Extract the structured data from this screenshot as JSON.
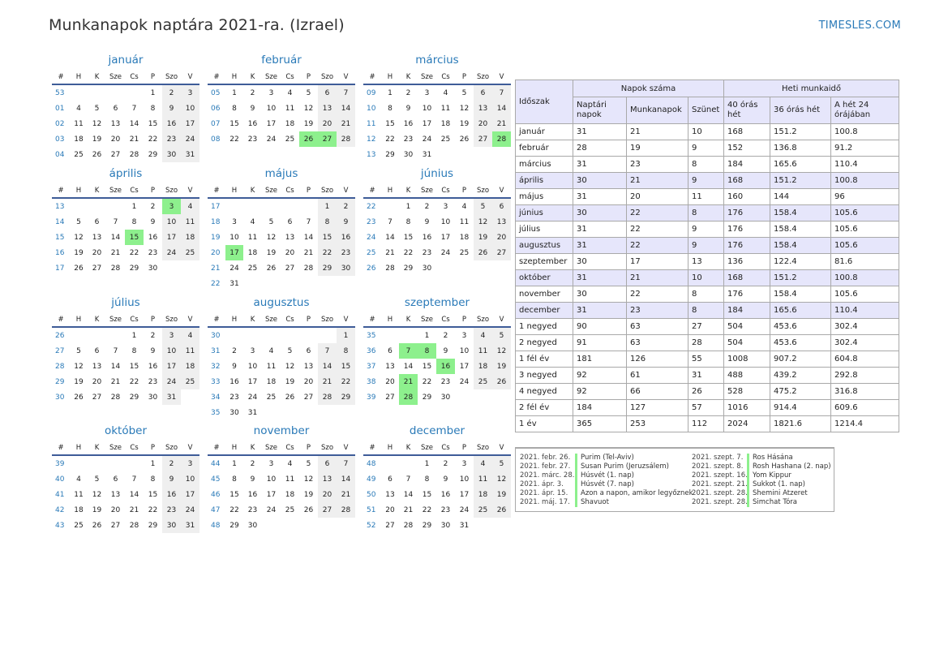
{
  "title": "Munkanapok naptára 2021-ra. (Izrael)",
  "brand": "TIMESLES.COM",
  "colors": {
    "accent": "#2a7ab8",
    "holiday": "#8df08d",
    "weekend": "#efefef",
    "header_rule": "#3e5c98"
  },
  "weekday_headers": [
    "#",
    "H",
    "K",
    "Sze",
    "Cs",
    "P",
    "Szo",
    "V"
  ],
  "months": [
    {
      "name": "január",
      "weeks": [
        "53",
        "01",
        "02",
        "03",
        "04"
      ],
      "offset": 4,
      "days": 31,
      "holidays": []
    },
    {
      "name": "február",
      "weeks": [
        "05",
        "06",
        "07",
        "08"
      ],
      "offset": 0,
      "days": 28,
      "holidays": [
        26,
        27
      ]
    },
    {
      "name": "március",
      "weeks": [
        "09",
        "10",
        "11",
        "12",
        "13"
      ],
      "offset": 0,
      "days": 31,
      "holidays": [
        28
      ]
    },
    {
      "name": "április",
      "weeks": [
        "13",
        "14",
        "15",
        "16",
        "17"
      ],
      "offset": 3,
      "days": 30,
      "holidays": [
        3,
        15
      ]
    },
    {
      "name": "május",
      "weeks": [
        "17",
        "18",
        "19",
        "20",
        "21",
        "22"
      ],
      "offset": 5,
      "days": 31,
      "holidays": [
        17
      ]
    },
    {
      "name": "június",
      "weeks": [
        "22",
        "23",
        "24",
        "25",
        "26"
      ],
      "offset": 1,
      "days": 30,
      "holidays": []
    },
    {
      "name": "július",
      "weeks": [
        "26",
        "27",
        "28",
        "29",
        "30"
      ],
      "offset": 3,
      "days": 31,
      "holidays": []
    },
    {
      "name": "augusztus",
      "weeks": [
        "30",
        "31",
        "32",
        "33",
        "34",
        "35"
      ],
      "offset": 6,
      "days": 31,
      "holidays": []
    },
    {
      "name": "szeptember",
      "weeks": [
        "35",
        "36",
        "37",
        "38",
        "39"
      ],
      "offset": 2,
      "days": 30,
      "holidays": [
        7,
        8,
        16,
        21,
        28
      ]
    },
    {
      "name": "október",
      "weeks": [
        "39",
        "40",
        "41",
        "42",
        "43"
      ],
      "offset": 4,
      "days": 31,
      "holidays": []
    },
    {
      "name": "november",
      "weeks": [
        "44",
        "45",
        "46",
        "47",
        "48"
      ],
      "offset": 0,
      "days": 30,
      "holidays": []
    },
    {
      "name": "december",
      "weeks": [
        "48",
        "49",
        "50",
        "51",
        "52"
      ],
      "offset": 2,
      "days": 31,
      "holidays": []
    }
  ],
  "stats": {
    "h_period": "Időszak",
    "h_days": "Napok száma",
    "h_hours": "Heti munkaidő",
    "sub": [
      "Naptári napok",
      "Munkanapok",
      "Szünet",
      "40 órás hét",
      "36 órás hét",
      "A hét 24 órájában"
    ],
    "rows": [
      [
        "január",
        "31",
        "21",
        "10",
        "168",
        "151.2",
        "100.8"
      ],
      [
        "február",
        "28",
        "19",
        "9",
        "152",
        "136.8",
        "91.2"
      ],
      [
        "március",
        "31",
        "23",
        "8",
        "184",
        "165.6",
        "110.4"
      ],
      [
        "április",
        "30",
        "21",
        "9",
        "168",
        "151.2",
        "100.8"
      ],
      [
        "május",
        "31",
        "20",
        "11",
        "160",
        "144",
        "96"
      ],
      [
        "június",
        "30",
        "22",
        "8",
        "176",
        "158.4",
        "105.6"
      ],
      [
        "július",
        "31",
        "22",
        "9",
        "176",
        "158.4",
        "105.6"
      ],
      [
        "augusztus",
        "31",
        "22",
        "9",
        "176",
        "158.4",
        "105.6"
      ],
      [
        "szeptember",
        "30",
        "17",
        "13",
        "136",
        "122.4",
        "81.6"
      ],
      [
        "október",
        "31",
        "21",
        "10",
        "168",
        "151.2",
        "100.8"
      ],
      [
        "november",
        "30",
        "22",
        "8",
        "176",
        "158.4",
        "105.6"
      ],
      [
        "december",
        "31",
        "23",
        "8",
        "184",
        "165.6",
        "110.4"
      ],
      [
        "1 negyed",
        "90",
        "63",
        "27",
        "504",
        "453.6",
        "302.4"
      ],
      [
        "2 negyed",
        "91",
        "63",
        "28",
        "504",
        "453.6",
        "302.4"
      ],
      [
        "1 fél év",
        "181",
        "126",
        "55",
        "1008",
        "907.2",
        "604.8"
      ],
      [
        "3 negyed",
        "92",
        "61",
        "31",
        "488",
        "439.2",
        "292.8"
      ],
      [
        "4 negyed",
        "92",
        "66",
        "26",
        "528",
        "475.2",
        "316.8"
      ],
      [
        "2 fél év",
        "184",
        "127",
        "57",
        "1016",
        "914.4",
        "609.6"
      ],
      [
        "1 év",
        "365",
        "253",
        "112",
        "2024",
        "1821.6",
        "1214.4"
      ]
    ]
  },
  "holidays_left": [
    {
      "date": "2021. febr. 26.",
      "name": "Purim (Tel-Aviv)"
    },
    {
      "date": "2021. febr. 27.",
      "name": "Susan Purim (Jeruzsálem)"
    },
    {
      "date": "2021. márc. 28.",
      "name": "Húsvét (1. nap)"
    },
    {
      "date": "2021. ápr. 3.",
      "name": "Húsvét (7. nap)"
    },
    {
      "date": "2021. ápr. 15.",
      "name": "Azon a napon, amikor legyőznek"
    },
    {
      "date": "2021. máj. 17.",
      "name": "Shavuot"
    }
  ],
  "holidays_right": [
    {
      "date": "2021. szept. 7.",
      "name": "Ros Hásána"
    },
    {
      "date": "2021. szept. 8.",
      "name": "Rosh Hashana (2. nap)"
    },
    {
      "date": "2021. szept. 16.",
      "name": "Yom Kippur"
    },
    {
      "date": "2021. szept. 21.",
      "name": "Sukkot (1. nap)"
    },
    {
      "date": "2021. szept. 28.",
      "name": "Shemini Atzeret"
    },
    {
      "date": "2021. szept. 28.",
      "name": "Simchat Tóra"
    }
  ]
}
